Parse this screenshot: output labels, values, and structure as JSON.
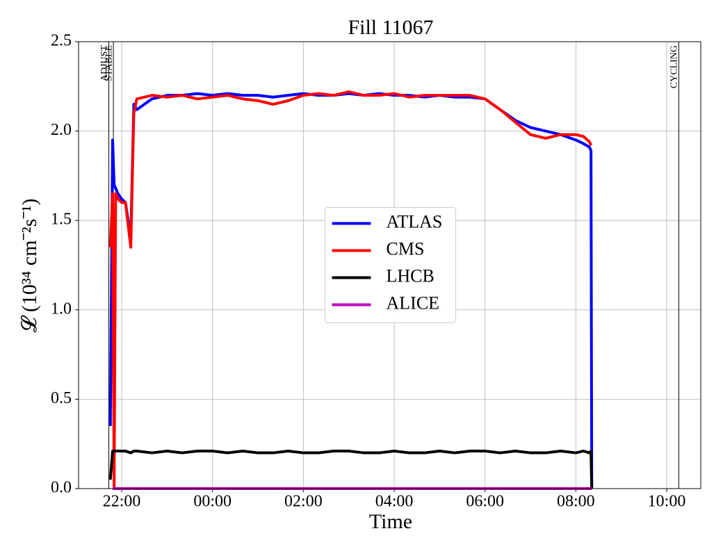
{
  "chart_data": {
    "type": "line",
    "title": "Fill 11067",
    "x_label": "Time",
    "y_label": "𝓛 (10³⁴ cm⁻²s⁻¹)",
    "x": [
      "21:45",
      "21:48",
      "21:50",
      "21:52",
      "21:55",
      "22:00",
      "22:05",
      "22:12",
      "22:16",
      "22:20",
      "22:40",
      "23:00",
      "23:20",
      "23:40",
      "00:00",
      "00:20",
      "00:40",
      "01:00",
      "01:20",
      "01:40",
      "02:00",
      "02:20",
      "02:40",
      "03:00",
      "03:20",
      "03:40",
      "04:00",
      "04:20",
      "04:40",
      "05:00",
      "05:20",
      "05:40",
      "06:00",
      "06:20",
      "06:40",
      "07:00",
      "07:20",
      "07:40",
      "08:00",
      "08:10",
      "08:18",
      "08:20",
      "08:21"
    ],
    "series": [
      {
        "name": "ATLAS",
        "color": "#0000ff",
        "values": [
          0.35,
          1.95,
          1.7,
          1.68,
          1.65,
          1.62,
          1.6,
          1.4,
          2.15,
          2.12,
          2.18,
          2.2,
          2.2,
          2.21,
          2.2,
          2.21,
          2.2,
          2.2,
          2.19,
          2.2,
          2.21,
          2.2,
          2.2,
          2.21,
          2.2,
          2.21,
          2.2,
          2.2,
          2.19,
          2.2,
          2.19,
          2.19,
          2.18,
          2.12,
          2.06,
          2.02,
          2.0,
          1.98,
          1.95,
          1.93,
          1.91,
          1.89,
          0
        ]
      },
      {
        "name": "CMS",
        "color": "#ff0000",
        "values": [
          1.35,
          1.65,
          0.0,
          1.65,
          1.62,
          1.6,
          1.6,
          1.35,
          2.1,
          2.18,
          2.2,
          2.19,
          2.2,
          2.18,
          2.19,
          2.2,
          2.18,
          2.17,
          2.15,
          2.17,
          2.2,
          2.21,
          2.2,
          2.22,
          2.2,
          2.2,
          2.21,
          2.19,
          2.2,
          2.2,
          2.2,
          2.2,
          2.18,
          2.12,
          2.05,
          1.98,
          1.96,
          1.98,
          1.98,
          1.97,
          1.94,
          1.92,
          null
        ]
      },
      {
        "name": "LHCB",
        "color": "#000000",
        "values": [
          0.05,
          0.21,
          0.21,
          0.21,
          0.21,
          0.21,
          0.21,
          0.2,
          0.21,
          0.21,
          0.2,
          0.21,
          0.2,
          0.21,
          0.21,
          0.2,
          0.21,
          0.2,
          0.2,
          0.21,
          0.2,
          0.2,
          0.21,
          0.21,
          0.2,
          0.2,
          0.21,
          0.2,
          0.2,
          0.21,
          0.2,
          0.21,
          0.21,
          0.2,
          0.21,
          0.2,
          0.2,
          0.21,
          0.2,
          0.21,
          0.2,
          0.21,
          0
        ]
      },
      {
        "name": "ALICE",
        "color": "#bf00bf",
        "values": [
          null,
          0,
          0,
          0,
          0,
          0,
          0,
          0,
          0,
          0,
          0,
          0,
          0,
          0,
          0,
          0,
          0,
          0,
          0,
          0,
          0,
          0,
          0,
          0,
          0,
          0,
          0,
          0,
          0,
          0,
          0,
          0,
          0,
          0,
          0,
          0,
          0,
          0,
          0,
          0,
          0,
          0,
          0
        ]
      }
    ],
    "annotations": [
      {
        "label": "ADJUST",
        "x": "21:43"
      },
      {
        "label": "STABLE",
        "x": "21:49"
      },
      {
        "label": "CYCLING",
        "x": "10:16"
      }
    ],
    "xlim": [
      "21:03",
      "10:45"
    ],
    "xticks": [
      "22:00",
      "00:00",
      "02:00",
      "04:00",
      "06:00",
      "08:00",
      "10:00"
    ],
    "ylim": [
      0,
      2.5
    ],
    "yticks": [
      {
        "value": 0,
        "label": "0.0"
      },
      {
        "value": 0.5,
        "label": "0.5"
      },
      {
        "value": 1,
        "label": "1.0"
      },
      {
        "value": 1.5,
        "label": "1.5"
      },
      {
        "value": 2,
        "label": "2.0"
      },
      {
        "value": 2.5,
        "label": "2.5"
      }
    ],
    "grid": true,
    "legend": "center"
  }
}
